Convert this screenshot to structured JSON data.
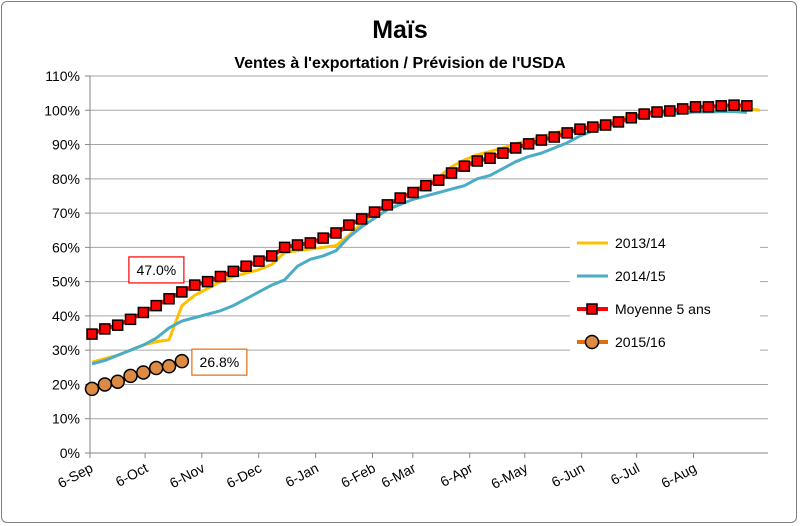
{
  "chart_data": {
    "type": "line",
    "title": "Maïs",
    "subtitle": "Ventes à l'exportation / Prévision de l'USDA",
    "xlabel": "",
    "ylabel": "",
    "x_unit": "weeks since 6-Sep",
    "xlim": [
      0,
      52.8
    ],
    "ylim": [
      0,
      110
    ],
    "yticks": [
      0,
      10,
      20,
      30,
      40,
      50,
      60,
      70,
      80,
      90,
      100,
      110
    ],
    "ytick_labels": [
      "0%",
      "10%",
      "20%",
      "30%",
      "40%",
      "50%",
      "60%",
      "70%",
      "80%",
      "90%",
      "100%",
      "110%"
    ],
    "xticks": [
      0,
      4.29,
      8.71,
      13.14,
      17.57,
      22,
      25.14,
      29.57,
      33.86,
      38.29,
      42.57,
      47
    ],
    "xtick_labels": [
      "6-Sep",
      "6-Oct",
      "6-Nov",
      "6-Dec",
      "6-Jan",
      "6-Feb",
      "6-Mar",
      "6-Apr",
      "6-May",
      "6-Jun",
      "6-Jul",
      "6-Aug"
    ],
    "grid": true,
    "legend_position": "right",
    "series": [
      {
        "name": "2013/14",
        "color": "#ffc000",
        "marker": "none",
        "values": [
          26.5,
          27.5,
          28.5,
          30,
          31.5,
          32.5,
          33,
          43,
          46,
          48,
          50,
          51.5,
          52.5,
          53.5,
          55,
          58.5,
          59,
          59.5,
          60,
          60.5,
          63.5,
          67,
          70,
          72.5,
          74.5,
          76.5,
          78.5,
          80.5,
          83.5,
          85.5,
          87,
          88,
          89,
          90.2,
          91.2,
          92.3,
          93.3,
          94.3,
          95,
          95.6,
          96.4,
          97.5,
          98.3,
          99,
          99.4,
          99.6,
          100,
          100.2,
          100.4,
          100.6,
          100.5,
          100.4,
          100
        ]
      },
      {
        "name": "2014/15",
        "color": "#4bacc6",
        "marker": "none",
        "values": [
          26,
          27,
          28.5,
          30,
          31.5,
          33.5,
          36.5,
          38.5,
          39.5,
          40.5,
          41.5,
          43,
          45,
          47,
          49,
          50.5,
          54.5,
          56.5,
          57.5,
          59,
          63,
          66,
          68.5,
          71,
          72.5,
          74,
          75,
          76,
          77,
          78,
          80,
          81,
          83,
          85,
          86.5,
          87.5,
          89,
          90.5,
          92.5,
          94,
          95,
          96.5,
          97.5,
          98.3,
          98.7,
          99,
          99.2,
          99.5,
          99.5,
          99.6,
          99.6,
          99.4
        ]
      },
      {
        "name": "Moyenne 5 ans",
        "color": "#ff0000",
        "marker": "square",
        "values": [
          34.7,
          36.2,
          37.3,
          39,
          41,
          43,
          45,
          47,
          49,
          50,
          51.5,
          53,
          54.5,
          56,
          57.5,
          60,
          60.7,
          61.3,
          62.7,
          64.2,
          66.5,
          68.3,
          70.3,
          72.4,
          74.4,
          76,
          78,
          79.6,
          81.7,
          83.7,
          85.2,
          86,
          87.5,
          89,
          90.2,
          91.3,
          92.2,
          93.4,
          94.5,
          95.1,
          95.7,
          96.6,
          97.8,
          98.9,
          99.5,
          99.8,
          100.4,
          101,
          101,
          101.3,
          101.5,
          101.3
        ]
      },
      {
        "name": "2015/16",
        "color": "#e46c0a",
        "marker": "circle",
        "values": [
          18.7,
          20,
          20.8,
          22.5,
          23.5,
          24.8,
          25.3,
          26.8
        ]
      }
    ],
    "annotations": [
      {
        "text": "47.0%",
        "series": "Moyenne 5 ans",
        "color": "#ff0000"
      },
      {
        "text": "26.8%",
        "series": "2015/16",
        "color": "#e46c0a"
      }
    ]
  }
}
